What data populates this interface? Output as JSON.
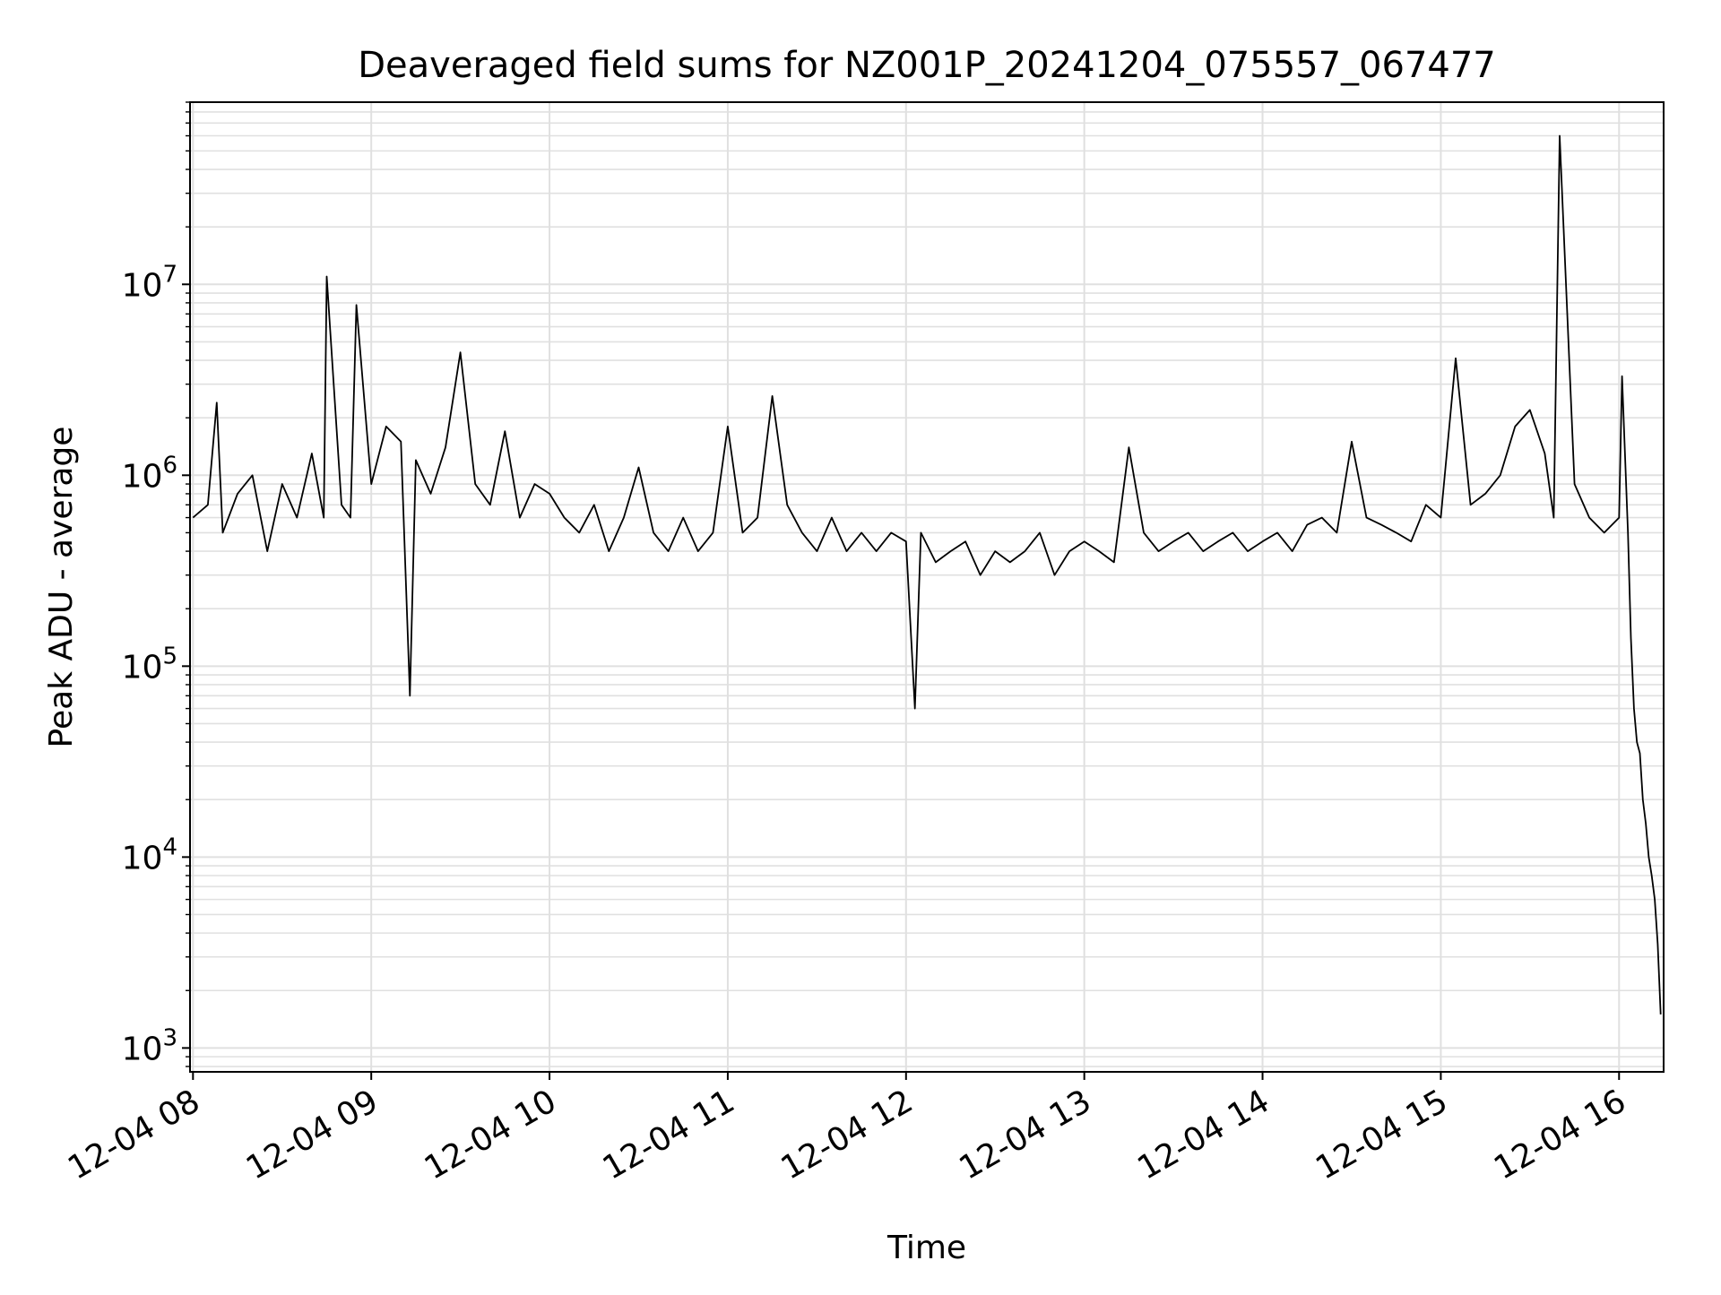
{
  "chart_data": {
    "type": "line",
    "title": "Deaveraged field sums for NZ001P_20241204_075557_067477",
    "xlabel": "Time",
    "ylabel": "Peak ADU - average",
    "y_scale": "log",
    "ylim": [
      750,
      90000000
    ],
    "xlim": [
      "2024-12-04 07:59",
      "2024-12-04 16:15"
    ],
    "x_ticks": [
      {
        "time": "2024-12-04 08:00",
        "label": "12-04 08"
      },
      {
        "time": "2024-12-04 09:00",
        "label": "12-04 09"
      },
      {
        "time": "2024-12-04 10:00",
        "label": "12-04 10"
      },
      {
        "time": "2024-12-04 11:00",
        "label": "12-04 11"
      },
      {
        "time": "2024-12-04 12:00",
        "label": "12-04 12"
      },
      {
        "time": "2024-12-04 13:00",
        "label": "12-04 13"
      },
      {
        "time": "2024-12-04 14:00",
        "label": "12-04 14"
      },
      {
        "time": "2024-12-04 15:00",
        "label": "12-04 15"
      },
      {
        "time": "2024-12-04 16:00",
        "label": "12-04 16"
      }
    ],
    "y_ticks": [
      {
        "value": 1000,
        "base": "10",
        "exp": "3"
      },
      {
        "value": 10000,
        "base": "10",
        "exp": "4"
      },
      {
        "value": 100000,
        "base": "10",
        "exp": "5"
      },
      {
        "value": 1000000,
        "base": "10",
        "exp": "6"
      },
      {
        "value": 10000000,
        "base": "10",
        "exp": "7"
      }
    ],
    "grid": true,
    "line_color": "#000000",
    "grid_color": "#e0e0e0",
    "series": [
      {
        "x": [
          "2024-12-04 08:00",
          "2024-12-04 08:05",
          "2024-12-04 08:08",
          "2024-12-04 08:10",
          "2024-12-04 08:15",
          "2024-12-04 08:20",
          "2024-12-04 08:25",
          "2024-12-04 08:30",
          "2024-12-04 08:35",
          "2024-12-04 08:40",
          "2024-12-04 08:44",
          "2024-12-04 08:45",
          "2024-12-04 08:50",
          "2024-12-04 08:53",
          "2024-12-04 08:55",
          "2024-12-04 09:00",
          "2024-12-04 09:05",
          "2024-12-04 09:10",
          "2024-12-04 09:13",
          "2024-12-04 09:15",
          "2024-12-04 09:20",
          "2024-12-04 09:25",
          "2024-12-04 09:30",
          "2024-12-04 09:35",
          "2024-12-04 09:40",
          "2024-12-04 09:45",
          "2024-12-04 09:50",
          "2024-12-04 09:55",
          "2024-12-04 10:00",
          "2024-12-04 10:05",
          "2024-12-04 10:10",
          "2024-12-04 10:15",
          "2024-12-04 10:20",
          "2024-12-04 10:25",
          "2024-12-04 10:30",
          "2024-12-04 10:35",
          "2024-12-04 10:40",
          "2024-12-04 10:45",
          "2024-12-04 10:50",
          "2024-12-04 10:55",
          "2024-12-04 11:00",
          "2024-12-04 11:05",
          "2024-12-04 11:10",
          "2024-12-04 11:15",
          "2024-12-04 11:20",
          "2024-12-04 11:25",
          "2024-12-04 11:30",
          "2024-12-04 11:35",
          "2024-12-04 11:40",
          "2024-12-04 11:45",
          "2024-12-04 11:50",
          "2024-12-04 11:55",
          "2024-12-04 12:00",
          "2024-12-04 12:03",
          "2024-12-04 12:05",
          "2024-12-04 12:10",
          "2024-12-04 12:15",
          "2024-12-04 12:20",
          "2024-12-04 12:25",
          "2024-12-04 12:30",
          "2024-12-04 12:35",
          "2024-12-04 12:40",
          "2024-12-04 12:45",
          "2024-12-04 12:50",
          "2024-12-04 12:55",
          "2024-12-04 13:00",
          "2024-12-04 13:05",
          "2024-12-04 13:10",
          "2024-12-04 13:15",
          "2024-12-04 13:20",
          "2024-12-04 13:25",
          "2024-12-04 13:30",
          "2024-12-04 13:35",
          "2024-12-04 13:40",
          "2024-12-04 13:45",
          "2024-12-04 13:50",
          "2024-12-04 13:55",
          "2024-12-04 14:00",
          "2024-12-04 14:05",
          "2024-12-04 14:10",
          "2024-12-04 14:15",
          "2024-12-04 14:20",
          "2024-12-04 14:25",
          "2024-12-04 14:30",
          "2024-12-04 14:35",
          "2024-12-04 14:40",
          "2024-12-04 14:45",
          "2024-12-04 14:50",
          "2024-12-04 14:55",
          "2024-12-04 15:00",
          "2024-12-04 15:05",
          "2024-12-04 15:10",
          "2024-12-04 15:15",
          "2024-12-04 15:20",
          "2024-12-04 15:25",
          "2024-12-04 15:30",
          "2024-12-04 15:35",
          "2024-12-04 15:38",
          "2024-12-04 15:40",
          "2024-12-04 15:45",
          "2024-12-04 15:50",
          "2024-12-04 15:55",
          "2024-12-04 16:00",
          "2024-12-04 16:01",
          "2024-12-04 16:03",
          "2024-12-04 16:04",
          "2024-12-04 16:05",
          "2024-12-04 16:06",
          "2024-12-04 16:07",
          "2024-12-04 16:08",
          "2024-12-04 16:09",
          "2024-12-04 16:10",
          "2024-12-04 16:11",
          "2024-12-04 16:12",
          "2024-12-04 16:13",
          "2024-12-04 16:14"
        ],
        "y": [
          600000,
          700000,
          2400000,
          500000,
          800000,
          1000000,
          400000,
          900000,
          600000,
          1300000,
          600000,
          11000000,
          700000,
          600000,
          7800000,
          900000,
          1800000,
          1500000,
          70000,
          1200000,
          800000,
          1400000,
          4400000,
          900000,
          700000,
          1700000,
          600000,
          900000,
          800000,
          600000,
          500000,
          700000,
          400000,
          600000,
          1100000,
          500000,
          400000,
          600000,
          400000,
          500000,
          1800000,
          500000,
          600000,
          2600000,
          700000,
          500000,
          400000,
          600000,
          400000,
          500000,
          400000,
          500000,
          450000,
          60000,
          500000,
          350000,
          400000,
          450000,
          300000,
          400000,
          350000,
          400000,
          500000,
          300000,
          400000,
          450000,
          400000,
          350000,
          1400000,
          500000,
          400000,
          450000,
          500000,
          400000,
          450000,
          500000,
          400000,
          450000,
          500000,
          400000,
          550000,
          600000,
          500000,
          1500000,
          600000,
          550000,
          500000,
          450000,
          700000,
          600000,
          4100000,
          700000,
          800000,
          1000000,
          1800000,
          2200000,
          1300000,
          600000,
          60000000,
          900000,
          600000,
          500000,
          600000,
          3300000,
          500000,
          140000,
          60000,
          40000,
          35000,
          20000,
          15000,
          10000,
          8000,
          6000,
          3500,
          1500
        ]
      }
    ]
  }
}
